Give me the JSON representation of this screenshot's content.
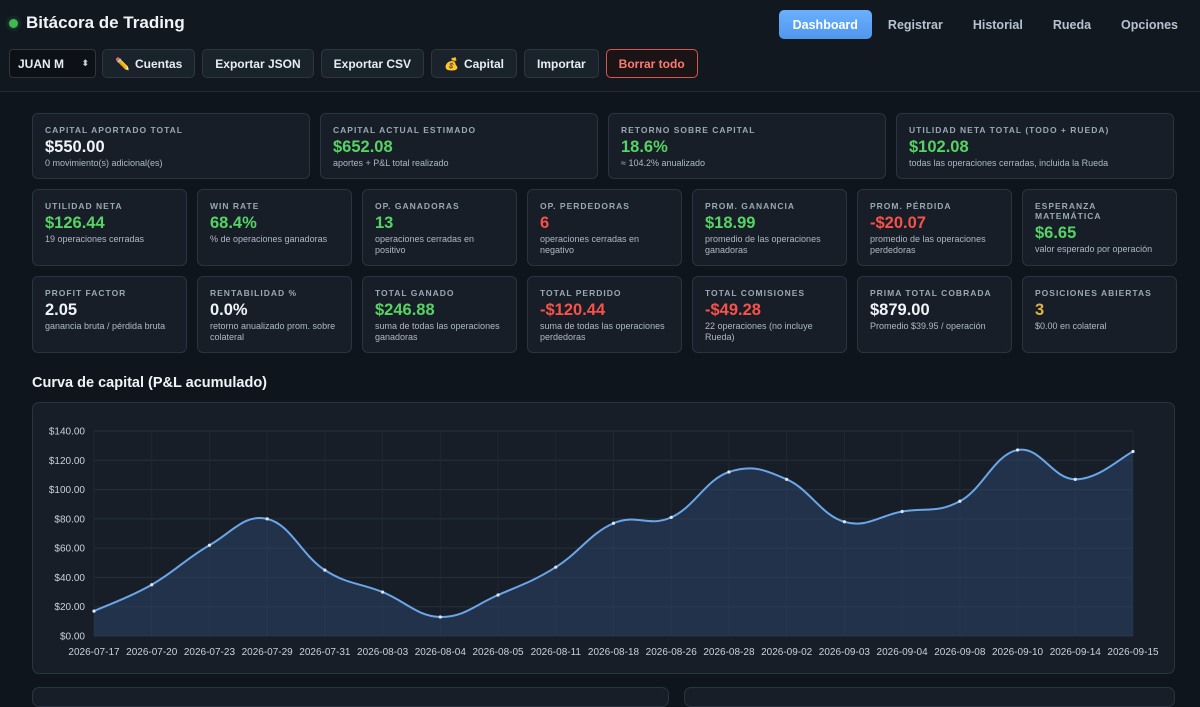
{
  "app": {
    "title": "Bitácora de Trading",
    "status_color": "#3fb950"
  },
  "nav": {
    "tabs": [
      {
        "label": "Dashboard",
        "active": true
      },
      {
        "label": "Registrar",
        "active": false
      },
      {
        "label": "Historial",
        "active": false
      },
      {
        "label": "Rueda",
        "active": false
      },
      {
        "label": "Opciones",
        "active": false
      }
    ]
  },
  "toolbar": {
    "account_select": {
      "value": "JUAN M"
    },
    "cuentas": {
      "icon": "pencil-icon",
      "glyph": "✏️",
      "label": "Cuentas"
    },
    "export_json": "Exportar JSON",
    "export_csv": "Exportar CSV",
    "capital": {
      "icon": "money-bag-icon",
      "glyph": "💰",
      "label": "Capital"
    },
    "import": "Importar",
    "clear_all": "Borrar todo"
  },
  "summary": [
    {
      "key": "capital-aportado",
      "label": "CAPITAL APORTADO TOTAL",
      "value": "$550.00",
      "sub": "0 movimiento(s) adicional(es)",
      "tone": "white"
    },
    {
      "key": "capital-actual",
      "label": "CAPITAL ACTUAL ESTIMADO",
      "value": "$652.08",
      "sub": "aportes + P&L total realizado",
      "tone": "green"
    },
    {
      "key": "retorno-capital",
      "label": "RETORNO SOBRE CAPITAL",
      "value": "18.6%",
      "sub": "≈ 104.2% anualizado",
      "tone": "green"
    },
    {
      "key": "utilidad-total",
      "label": "UTILIDAD NETA TOTAL (TODO + RUEDA)",
      "value": "$102.08",
      "sub": "todas las operaciones cerradas, incluida la Rueda",
      "tone": "green"
    }
  ],
  "metrics_row1": [
    {
      "key": "utilidad-neta",
      "label": "UTILIDAD NETA",
      "value": "$126.44",
      "sub": "19 operaciones cerradas",
      "tone": "green"
    },
    {
      "key": "win-rate",
      "label": "WIN RATE",
      "value": "68.4%",
      "sub": "% de operaciones ganadoras",
      "tone": "green"
    },
    {
      "key": "op-ganadoras",
      "label": "OP. GANADORAS",
      "value": "13",
      "sub": "operaciones cerradas en positivo",
      "tone": "green"
    },
    {
      "key": "op-perdedoras",
      "label": "OP. PERDEDORAS",
      "value": "6",
      "sub": "operaciones cerradas en negativo",
      "tone": "red"
    },
    {
      "key": "prom-ganancia",
      "label": "PROM. GANANCIA",
      "value": "$18.99",
      "sub": "promedio de las operaciones ganadoras",
      "tone": "green"
    },
    {
      "key": "prom-perdida",
      "label": "PROM. PÉRDIDA",
      "value": "-$20.07",
      "sub": "promedio de las operaciones perdedoras",
      "tone": "red"
    },
    {
      "key": "esperanza",
      "label": "ESPERANZA MATEMÁTICA",
      "value": "$6.65",
      "sub": "valor esperado por operación",
      "tone": "green"
    }
  ],
  "metrics_row2": [
    {
      "key": "profit-factor",
      "label": "PROFIT FACTOR",
      "value": "2.05",
      "sub": "ganancia bruta / pérdida bruta",
      "tone": "white"
    },
    {
      "key": "rentabilidad",
      "label": "RENTABILIDAD %",
      "value": "0.0%",
      "sub": "retorno anualizado prom. sobre colateral",
      "tone": "white"
    },
    {
      "key": "total-ganado",
      "label": "TOTAL GANADO",
      "value": "$246.88",
      "sub": "suma de todas las operaciones ganadoras",
      "tone": "green"
    },
    {
      "key": "total-perdido",
      "label": "TOTAL PERDIDO",
      "value": "-$120.44",
      "sub": "suma de todas las operaciones perdedoras",
      "tone": "red"
    },
    {
      "key": "total-comisiones",
      "label": "TOTAL COMISIONES",
      "value": "-$49.28",
      "sub": "22 operaciones (no incluye Rueda)",
      "tone": "red"
    },
    {
      "key": "prima-total",
      "label": "PRIMA TOTAL COBRADA",
      "value": "$879.00",
      "sub": "Promedio $39.95 / operación",
      "tone": "white"
    },
    {
      "key": "posiciones-abiertas",
      "label": "POSICIONES ABIERTAS",
      "value": "3",
      "sub": "$0.00 en colateral",
      "tone": "yellow"
    }
  ],
  "equity_section": {
    "title": "Curva de capital (P&L acumulado)"
  },
  "chart_data": {
    "type": "area",
    "title": "",
    "xlabel": "",
    "ylabel": "",
    "ylim": [
      0,
      140
    ],
    "yticks": [
      0,
      20,
      40,
      60,
      80,
      100,
      120,
      140
    ],
    "ytick_labels": [
      "$0.00",
      "$20.00",
      "$40.00",
      "$60.00",
      "$80.00",
      "$100.00",
      "$120.00",
      "$140.00"
    ],
    "grid": true,
    "line_color": "#6aa6e8",
    "fill_color": "#2c4466",
    "x": [
      "2026-07-17",
      "2026-07-20",
      "2026-07-23",
      "2026-07-29",
      "2026-07-31",
      "2026-08-03",
      "2026-08-04",
      "2026-08-05",
      "2026-08-11",
      "2026-08-18",
      "2026-08-26",
      "2026-08-28",
      "2026-09-02",
      "2026-09-03",
      "2026-09-04",
      "2026-09-08",
      "2026-09-10",
      "2026-09-14",
      "2026-09-15"
    ],
    "series": [
      {
        "values": [
          17,
          35,
          62,
          80,
          45,
          30,
          13,
          28,
          47,
          77,
          81,
          112,
          107,
          78,
          85,
          92,
          127,
          107,
          126
        ]
      }
    ]
  }
}
